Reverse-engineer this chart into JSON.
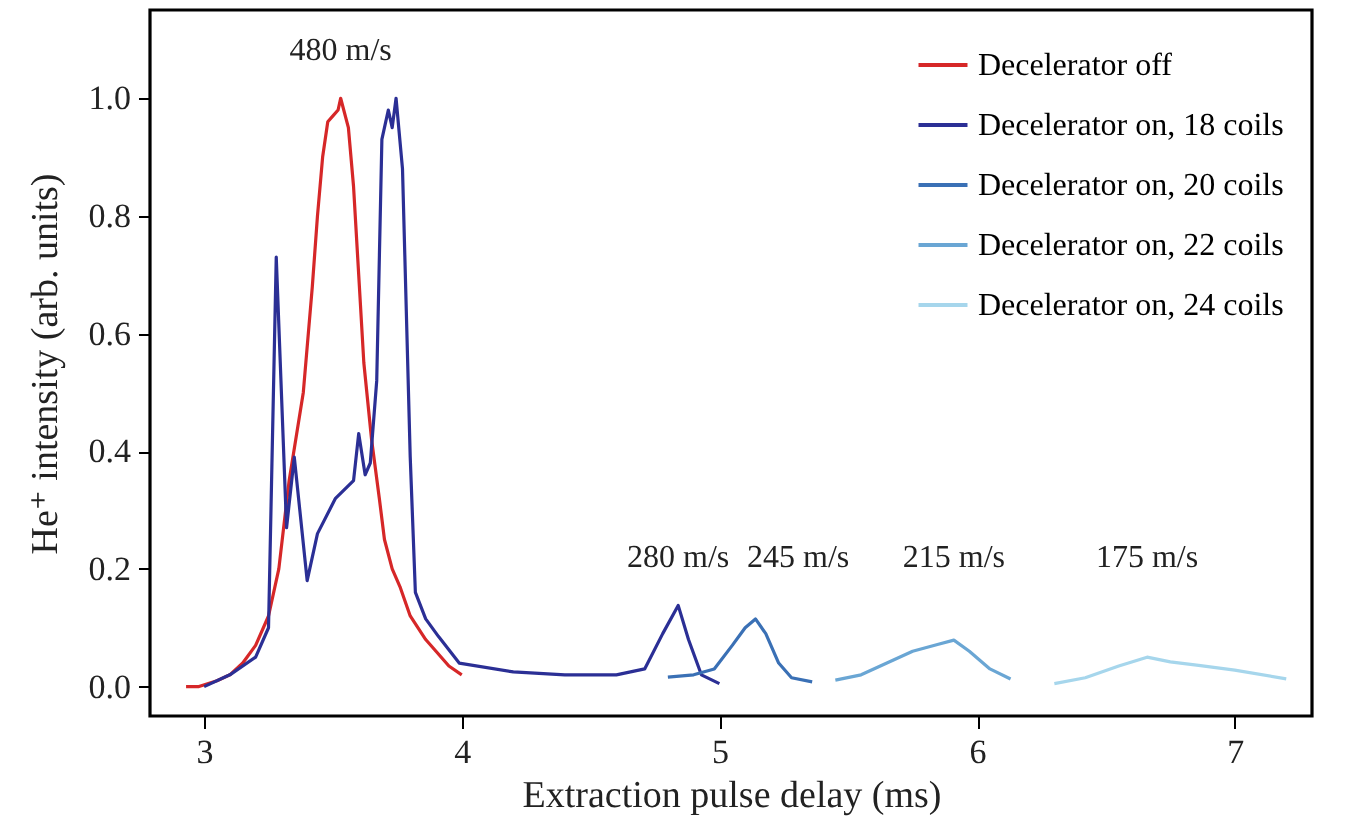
{
  "chart_data": {
    "type": "line",
    "xlabel": "Extraction pulse delay (ms)",
    "ylabel": "He⁺ intensity (arb. units)",
    "xlim": [
      2.79,
      7.3
    ],
    "ylim": [
      -0.05,
      1.15
    ],
    "xticks": [
      {
        "value": 3,
        "label": "3"
      },
      {
        "value": 4,
        "label": "4"
      },
      {
        "value": 5,
        "label": "5"
      },
      {
        "value": 6,
        "label": "6"
      },
      {
        "value": 7,
        "label": "7"
      }
    ],
    "yticks": [
      {
        "value": 0,
        "label": "0.0"
      },
      {
        "value": 0.2,
        "label": "0.2"
      },
      {
        "value": 0.4,
        "label": "0.4"
      },
      {
        "value": 0.6,
        "label": "0.6"
      },
      {
        "value": 0.8,
        "label": "0.8"
      },
      {
        "value": 1.0,
        "label": "1.0"
      }
    ],
    "grid": false,
    "legend": "top right",
    "series": [
      {
        "name": "Decelerator off",
        "color": "#d62728",
        "x": [
          2.93,
          2.98,
          3.05,
          3.1,
          3.15,
          3.2,
          3.25,
          3.29,
          3.33,
          3.385,
          3.42,
          3.44,
          3.46,
          3.48,
          3.5,
          3.52,
          3.53,
          3.56,
          3.58,
          3.6,
          3.62,
          3.65,
          3.68,
          3.7,
          3.73,
          3.76,
          3.8,
          3.86,
          3.9,
          3.95,
          4.0
        ],
        "values": [
          0.0,
          0.0,
          0.01,
          0.02,
          0.04,
          0.07,
          0.12,
          0.2,
          0.35,
          0.5,
          0.68,
          0.8,
          0.9,
          0.96,
          0.97,
          0.98,
          1.0,
          0.95,
          0.85,
          0.7,
          0.55,
          0.42,
          0.32,
          0.25,
          0.2,
          0.17,
          0.12,
          0.08,
          0.06,
          0.035,
          0.02
        ]
      },
      {
        "name": "Decelerator on, 18 coils",
        "color": "#2b2f95",
        "x": [
          3.0,
          3.1,
          3.2,
          3.25,
          3.28,
          3.32,
          3.35,
          3.4,
          3.44,
          3.51,
          3.58,
          3.6,
          3.625,
          3.645,
          3.67,
          3.69,
          3.715,
          3.73,
          3.745,
          3.77,
          3.8,
          3.82,
          3.86,
          3.91,
          3.99,
          4.2,
          4.4,
          4.5,
          4.6,
          4.71,
          4.78,
          4.84,
          4.88,
          4.93,
          5.0
        ],
        "values": [
          0.0,
          0.02,
          0.05,
          0.1,
          0.73,
          0.27,
          0.39,
          0.18,
          0.26,
          0.32,
          0.35,
          0.43,
          0.36,
          0.38,
          0.52,
          0.93,
          0.98,
          0.95,
          1.0,
          0.88,
          0.39,
          0.16,
          0.115,
          0.085,
          0.04,
          0.025,
          0.02,
          0.02,
          0.02,
          0.03,
          0.09,
          0.138,
          0.08,
          0.02,
          0.005
        ]
      },
      {
        "name": "Decelerator on, 20 coils",
        "color": "#3a70b5",
        "x": [
          4.8,
          4.9,
          4.98,
          5.05,
          5.1,
          5.14,
          5.18,
          5.23,
          5.28,
          5.36
        ],
        "values": [
          0.016,
          0.02,
          0.03,
          0.07,
          0.1,
          0.115,
          0.09,
          0.04,
          0.015,
          0.008
        ]
      },
      {
        "name": "Decelerator on, 22 coils",
        "color": "#6aa6d4",
        "x": [
          5.45,
          5.55,
          5.65,
          5.75,
          5.85,
          5.91,
          5.97,
          6.05,
          6.13
        ],
        "values": [
          0.011,
          0.02,
          0.04,
          0.06,
          0.072,
          0.079,
          0.06,
          0.03,
          0.013
        ]
      },
      {
        "name": "Decelerator on, 24 coils",
        "color": "#a6d6ec",
        "x": [
          6.3,
          6.42,
          6.55,
          6.66,
          6.75,
          6.86,
          7.0,
          7.2
        ],
        "values": [
          0.005,
          0.015,
          0.035,
          0.05,
          0.042,
          0.036,
          0.028,
          0.013
        ]
      }
    ],
    "annotations": [
      "480 m/s",
      "280 m/s",
      "245 m/s",
      "215 m/s",
      "175 m/s"
    ]
  }
}
